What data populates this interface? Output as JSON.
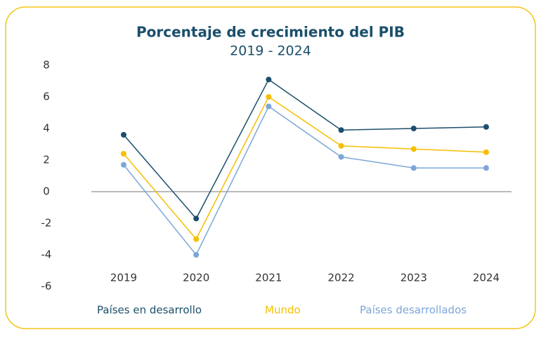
{
  "chart_data": {
    "type": "line",
    "title": "Porcentaje de crecimiento del PIB",
    "subtitle": "2019 - 2024",
    "categories": [
      "2019",
      "2020",
      "2021",
      "2022",
      "2023",
      "2024"
    ],
    "series": [
      {
        "name": "Países en desarrollo",
        "color": "#1b4f6b",
        "values": [
          3.6,
          -1.7,
          7.1,
          3.9,
          4.0,
          4.1
        ]
      },
      {
        "name": "Mundo",
        "color": "#f5bf00",
        "values": [
          2.4,
          -3.0,
          6.0,
          2.9,
          2.7,
          2.5
        ]
      },
      {
        "name": "Países desarrollados",
        "color": "#7ba7d7",
        "values": [
          1.7,
          -4.0,
          5.4,
          2.2,
          1.5,
          1.5
        ]
      }
    ],
    "ylim": [
      -6,
      8
    ],
    "yticks": [
      8,
      6,
      4,
      2,
      0,
      -2,
      -4,
      -6
    ],
    "legend": "bottom"
  }
}
